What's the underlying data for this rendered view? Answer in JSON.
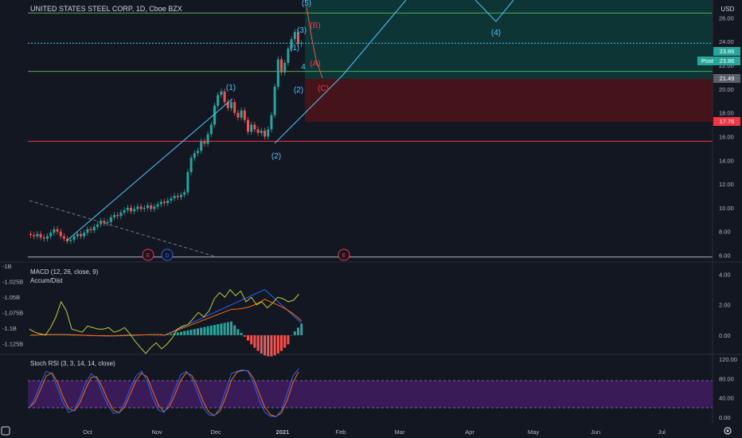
{
  "header": {
    "title": "UNITED STATES STEEL CORP, 1D, Cboe BZX",
    "currency": "USD"
  },
  "panes": {
    "main_axis_ticks": [
      "26.00",
      "24.00",
      "22.00",
      "20.00",
      "18.00",
      "16.00",
      "14.00",
      "12.00",
      "10.00",
      "8.00",
      "6.00"
    ],
    "macd_label": "MACD (12, 26, close, 9)",
    "ad_label": "Accum/Dist",
    "macd_axis_ticks": [
      "4.00",
      "2.00",
      "0.00"
    ],
    "ad_axis_ticks": [
      "-1B",
      "-1.025B",
      "-1.05B",
      "-1.075B",
      "-1.1B",
      "-1.125B"
    ],
    "rsi_label": "Stoch RSI (3, 3, 14, 14, close)",
    "rsi_axis_ticks": [
      "120.00",
      "80.00",
      "40.00",
      "0.00"
    ]
  },
  "price_tags": {
    "last": "23.86",
    "post_label": "Post",
    "post": "23.86",
    "line_a": "21.49",
    "stop": "17.76"
  },
  "time_axis": [
    "Oct",
    "Nov",
    "Dec",
    "2021",
    "Feb",
    "Mar",
    "Apr",
    "May",
    "Jun",
    "Jul"
  ],
  "elliott": {
    "blue": [
      "(1)",
      "(2)",
      "(3)",
      "(4)",
      "(5)",
      "(1)",
      "(2)",
      "4"
    ],
    "red": [
      "(A)",
      "(B)",
      "(C)"
    ]
  },
  "events": [
    "E",
    "D",
    "E"
  ],
  "colors": {
    "background": "#131722",
    "up": "#26a69a",
    "down": "#ef5350",
    "macd": "#2962ff",
    "signal": "#ff6d00",
    "accum": "#c0ca33",
    "rsi_k": "#2962ff",
    "rsi_d": "#ff6d00",
    "rsi_band": "#7e57c2",
    "wave": "#4fc3f7",
    "green_line": "#4caf50",
    "red_line": "#f23645"
  },
  "chart_data": [
    {
      "type": "candlestick",
      "title": "UNITED STATES STEEL CORP, 1D, Cboe BZX",
      "ylim": [
        5.5,
        27.5
      ],
      "x_ticks": [
        "Oct",
        "Nov",
        "Dec",
        "2021",
        "Feb",
        "Mar",
        "Apr",
        "May",
        "Jun",
        "Jul"
      ],
      "horizontal_lines": [
        26.4,
        23.86,
        21.49,
        15.6
      ],
      "close": [
        7.7,
        7.6,
        7.8,
        7.5,
        7.4,
        7.6,
        7.9,
        8.2,
        8.0,
        7.6,
        7.4,
        7.2,
        7.3,
        7.6,
        7.8,
        7.6,
        7.9,
        8.2,
        8.1,
        8.4,
        8.6,
        8.9,
        8.7,
        8.8,
        9.2,
        9.4,
        9.3,
        9.6,
        9.8,
        10.0,
        9.7,
        9.9,
        10.1,
        9.9,
        10.0,
        10.2,
        9.9,
        10.1,
        10.3,
        10.5,
        10.4,
        10.6,
        10.8,
        11.0,
        10.9,
        11.1,
        11.3,
        13.0,
        14.2,
        14.6,
        14.8,
        15.6,
        15.4,
        16.2,
        17.0,
        18.6,
        19.5,
        19.8,
        18.9,
        18.4,
        18.9,
        18.0,
        17.6,
        18.2,
        17.4,
        16.4,
        17.0,
        16.6,
        16.3,
        16.5,
        16.0,
        16.6,
        17.8,
        20.2,
        22.5,
        21.4,
        22.2,
        23.4,
        24.2,
        24.8,
        23.8,
        23.86
      ],
      "open": [
        7.8,
        7.7,
        7.6,
        7.8,
        7.5,
        7.4,
        7.6,
        7.9,
        8.2,
        8.0,
        7.6,
        7.4,
        7.2,
        7.3,
        7.6,
        7.8,
        7.6,
        7.9,
        8.2,
        8.1,
        8.4,
        8.6,
        8.9,
        8.7,
        8.8,
        9.2,
        9.4,
        9.3,
        9.6,
        9.8,
        10.0,
        9.7,
        9.9,
        10.1,
        9.9,
        10.0,
        10.2,
        9.9,
        10.1,
        10.3,
        10.5,
        10.4,
        10.6,
        10.8,
        11.0,
        10.9,
        11.1,
        11.3,
        13.0,
        14.2,
        14.6,
        14.8,
        15.6,
        15.4,
        16.2,
        17.0,
        18.6,
        19.5,
        19.8,
        18.9,
        18.4,
        18.9,
        18.0,
        17.6,
        18.2,
        17.4,
        16.4,
        17.0,
        16.6,
        16.3,
        16.5,
        16.0,
        16.6,
        17.8,
        20.2,
        22.5,
        21.4,
        22.2,
        23.4,
        24.2,
        24.8,
        23.8
      ]
    },
    {
      "type": "line",
      "title": "MACD (12, 26, close, 9)",
      "ylim": [
        -1.0,
        4.5
      ],
      "series": [
        {
          "name": "Accum/Dist",
          "values": [
            0.4,
            0.2,
            0.1,
            0.0,
            0.5,
            1.2,
            2.2,
            1.6,
            0.4,
            0.3,
            0.2,
            0.6,
            0.5,
            0.4,
            0.4,
            0.5,
            0.2,
            0.3,
            0.5,
            0.1,
            -0.4,
            -0.8,
            -1.2,
            -0.8,
            -0.5,
            -0.9,
            -0.6,
            -0.2,
            0.4,
            0.6,
            0.7,
            1.1,
            1.5,
            1.2,
            1.6,
            2.4,
            2.8,
            2.5,
            3.0,
            2.6,
            2.9,
            2.2,
            2.5,
            2.0,
            2.2,
            1.8,
            2.1,
            2.5,
            2.4,
            2.2,
            2.3,
            2.7
          ]
        }
      ]
    },
    {
      "type": "line",
      "title": "Stoch RSI (3, 3, 14, 14, close)",
      "ylim": [
        -10,
        120
      ],
      "series": [
        {
          "values": [
            20,
            40,
            70,
            95,
            90,
            60,
            30,
            10,
            15,
            40,
            70,
            90,
            80,
            50,
            25,
            8,
            10,
            30,
            60,
            85,
            95,
            75,
            40,
            15,
            10,
            30,
            60,
            88,
            95,
            80,
            50,
            20,
            5,
            3,
            20,
            55,
            90,
            95,
            98,
            95,
            70,
            35,
            10,
            2,
            1,
            15,
            50,
            85,
            100
          ]
        }
      ]
    }
  ]
}
